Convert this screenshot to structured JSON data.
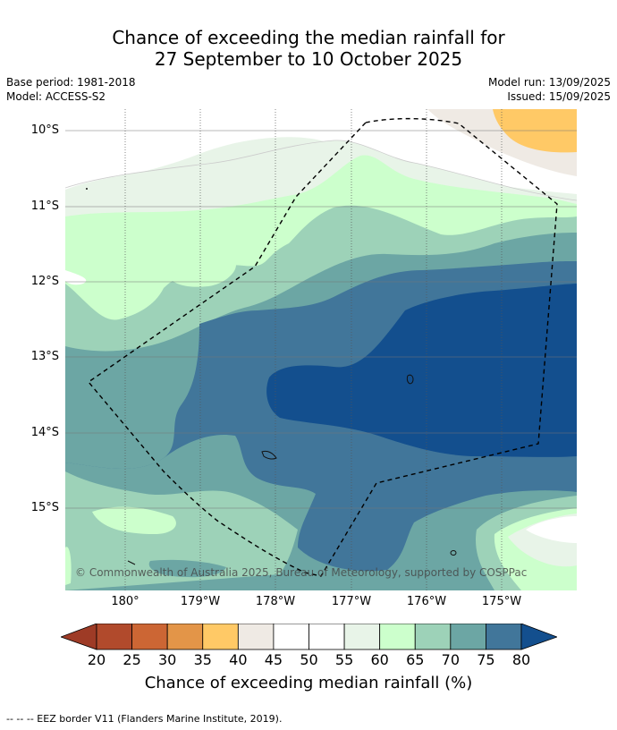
{
  "title_line1": "Chance of exceeding the median rainfall for",
  "title_line2": "27 September to 10 October 2025",
  "meta": {
    "base_period": "Base period: 1981-2018",
    "model": "Model: ACCESS-S2",
    "model_run": "Model run: 13/09/2025",
    "issued": "Issued: 15/09/2025"
  },
  "map": {
    "latitude_labels": [
      "10°S",
      "11°S",
      "12°S",
      "13°S",
      "14°S",
      "15°S"
    ],
    "longitude_labels": [
      "180°",
      "179°W",
      "178°W",
      "177°W",
      "176°W",
      "175°W"
    ],
    "copyright": "© Commonwealth of Australia 2025, Bureau of Meteorology, supported by COSPPac",
    "region_colors": {
      "35-40": "#ffc966",
      "40-45": "#efeae4",
      "55-60": "#e8f4e8",
      "60-65": "#ccffcc",
      "65-70": "#9dd2b8",
      "70-75": "#6ca6a4",
      "75-80": "#41769a",
      "80+": "#134f8e"
    }
  },
  "colorbar": {
    "ticks": [
      "20",
      "25",
      "30",
      "35",
      "40",
      "45",
      "50",
      "55",
      "60",
      "65",
      "70",
      "75",
      "80"
    ],
    "colors": [
      "#b14a2c",
      "#cc6634",
      "#e39548",
      "#ffc966",
      "#efeae4",
      "#ffffff",
      "#ffffff",
      "#e8f4e8",
      "#ccffcc",
      "#9dd2b8",
      "#6ca6a4",
      "#41769a"
    ],
    "low_extend_color": "#9e3b26",
    "high_extend_color": "#134f8e",
    "label": "Chance of exceeding median rainfall (%)"
  },
  "footer": "--  --  -- EEZ border V11 (Flanders Marine Institute, 2019)."
}
